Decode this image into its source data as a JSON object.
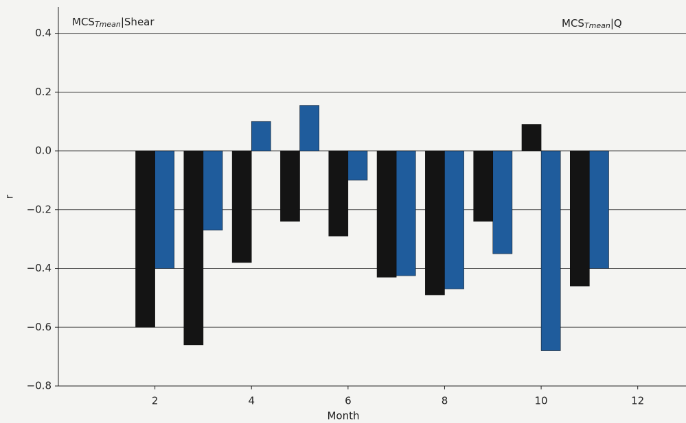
{
  "chart_data": {
    "type": "bar",
    "x": [
      2,
      3,
      4,
      5,
      6,
      7,
      8,
      9,
      10,
      11
    ],
    "series": [
      {
        "color": "#141414",
        "values": [
          -0.6,
          -0.66,
          -0.38,
          -0.24,
          -0.29,
          -0.43,
          -0.49,
          -0.24,
          0.09,
          -0.46
        ]
      },
      {
        "color": "#1f5c9c",
        "values": [
          -0.4,
          -0.27,
          0.1,
          0.155,
          -0.1,
          -0.425,
          -0.47,
          -0.35,
          -0.68,
          -0.4
        ]
      }
    ],
    "annotations": [
      {
        "main": "MCS",
        "sub": "Tmean",
        "rest": "|Shear"
      },
      {
        "main": "MCS",
        "sub": "Tmean",
        "rest": "|Q"
      }
    ],
    "xlabel": "Month",
    "ylabel": "r",
    "xlim": [
      0,
      13
    ],
    "xticks": [
      2,
      4,
      6,
      8,
      10,
      12
    ],
    "ylim": [
      -0.8,
      0.49
    ],
    "yticks": [
      {
        "value": -0.8,
        "label": "−0.8"
      },
      {
        "value": -0.6,
        "label": "−0.6"
      },
      {
        "value": -0.4,
        "label": "−0.4"
      },
      {
        "value": -0.2,
        "label": "−0.2"
      },
      {
        "value": 0,
        "label": "0.0"
      },
      0.2,
      0.4
    ],
    "grid": true
  }
}
